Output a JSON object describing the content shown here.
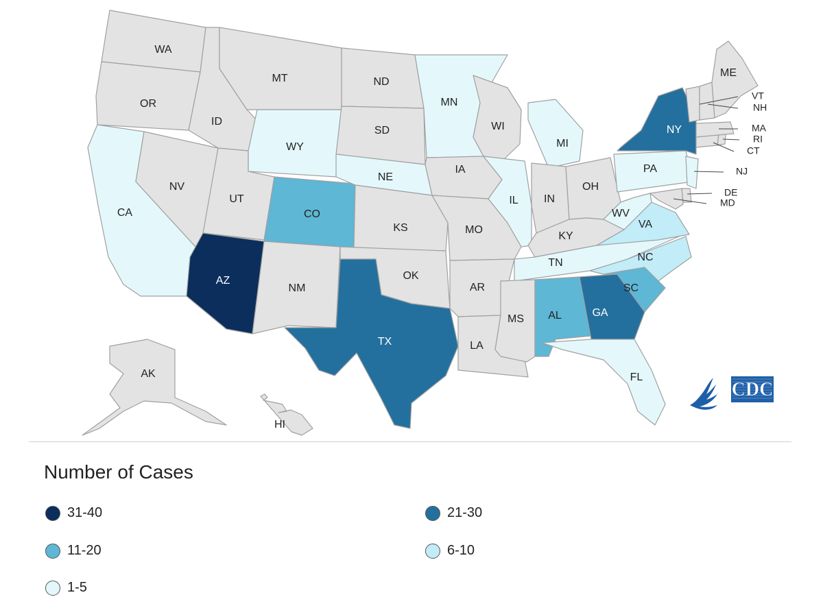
{
  "legend": {
    "title": "Number of Cases",
    "items": [
      {
        "label": "31-40",
        "color": "#0b2e5c"
      },
      {
        "label": "21-30",
        "color": "#23709e"
      },
      {
        "label": "11-20",
        "color": "#5db7d5"
      },
      {
        "label": "6-10",
        "color": "#c1ecf8"
      },
      {
        "label": "1-5",
        "color": "#e4f8fc"
      }
    ]
  },
  "no_cases_color": "#e3e3e3",
  "states": [
    {
      "abbr": "WA",
      "cases": "none"
    },
    {
      "abbr": "OR",
      "cases": "none"
    },
    {
      "abbr": "CA",
      "cases": "1-5"
    },
    {
      "abbr": "NV",
      "cases": "none"
    },
    {
      "abbr": "ID",
      "cases": "none"
    },
    {
      "abbr": "MT",
      "cases": "none"
    },
    {
      "abbr": "WY",
      "cases": "1-5"
    },
    {
      "abbr": "UT",
      "cases": "none"
    },
    {
      "abbr": "AZ",
      "cases": "31-40"
    },
    {
      "abbr": "CO",
      "cases": "11-20"
    },
    {
      "abbr": "NM",
      "cases": "none"
    },
    {
      "abbr": "ND",
      "cases": "none"
    },
    {
      "abbr": "SD",
      "cases": "none"
    },
    {
      "abbr": "NE",
      "cases": "1-5"
    },
    {
      "abbr": "KS",
      "cases": "none"
    },
    {
      "abbr": "OK",
      "cases": "none"
    },
    {
      "abbr": "TX",
      "cases": "21-30"
    },
    {
      "abbr": "MN",
      "cases": "1-5"
    },
    {
      "abbr": "IA",
      "cases": "none"
    },
    {
      "abbr": "MO",
      "cases": "none"
    },
    {
      "abbr": "AR",
      "cases": "none"
    },
    {
      "abbr": "LA",
      "cases": "none"
    },
    {
      "abbr": "WI",
      "cases": "none"
    },
    {
      "abbr": "IL",
      "cases": "1-5"
    },
    {
      "abbr": "MI",
      "cases": "1-5"
    },
    {
      "abbr": "IN",
      "cases": "none"
    },
    {
      "abbr": "OH",
      "cases": "none"
    },
    {
      "abbr": "KY",
      "cases": "none"
    },
    {
      "abbr": "TN",
      "cases": "1-5"
    },
    {
      "abbr": "MS",
      "cases": "none"
    },
    {
      "abbr": "AL",
      "cases": "11-20"
    },
    {
      "abbr": "GA",
      "cases": "21-30"
    },
    {
      "abbr": "FL",
      "cases": "1-5"
    },
    {
      "abbr": "SC",
      "cases": "11-20"
    },
    {
      "abbr": "NC",
      "cases": "6-10"
    },
    {
      "abbr": "VA",
      "cases": "6-10"
    },
    {
      "abbr": "WV",
      "cases": "1-5"
    },
    {
      "abbr": "PA",
      "cases": "1-5"
    },
    {
      "abbr": "NY",
      "cases": "21-30"
    },
    {
      "abbr": "NJ",
      "cases": "1-5"
    },
    {
      "abbr": "DE",
      "cases": "none"
    },
    {
      "abbr": "MD",
      "cases": "none"
    },
    {
      "abbr": "CT",
      "cases": "none"
    },
    {
      "abbr": "RI",
      "cases": "none"
    },
    {
      "abbr": "MA",
      "cases": "none"
    },
    {
      "abbr": "VT",
      "cases": "none"
    },
    {
      "abbr": "NH",
      "cases": "none"
    },
    {
      "abbr": "ME",
      "cases": "none"
    },
    {
      "abbr": "AK",
      "cases": "none"
    },
    {
      "abbr": "HI",
      "cases": "none"
    }
  ],
  "logo": {
    "text": "CDC",
    "icon": "hhs-eagle-icon",
    "color": "#1f5fa8"
  }
}
